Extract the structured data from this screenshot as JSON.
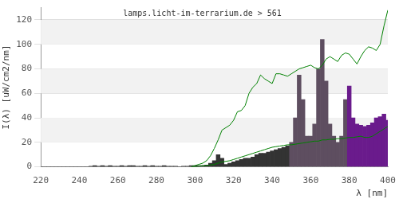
{
  "chart_data": {
    "type": "bar",
    "title": "lamps.licht-im-terrarium.de > 561",
    "x_label": "λ [nm]",
    "y_label": "I(λ) [uW/cm2/nm]",
    "x": [
      220,
      222,
      224,
      226,
      228,
      230,
      232,
      234,
      236,
      238,
      240,
      242,
      244,
      246,
      248,
      250,
      252,
      254,
      256,
      258,
      260,
      262,
      264,
      266,
      268,
      270,
      272,
      274,
      276,
      278,
      280,
      282,
      284,
      286,
      288,
      290,
      292,
      294,
      296,
      298,
      300,
      302,
      304,
      306,
      308,
      310,
      312,
      314,
      316,
      318,
      320,
      322,
      324,
      326,
      328,
      330,
      332,
      334,
      336,
      338,
      340,
      342,
      344,
      346,
      348,
      350,
      352,
      354,
      356,
      358,
      360,
      362,
      364,
      366,
      368,
      370,
      372,
      374,
      376,
      378,
      380,
      382,
      384,
      386,
      388,
      390,
      392,
      394,
      396,
      398,
      400
    ],
    "series": [
      {
        "type": "bar",
        "colors": [
          "#333333",
          "#333333",
          "#333333",
          "#333333",
          "#333333",
          "#333333",
          "#333333",
          "#333333",
          "#333333",
          "#333333",
          "#333333",
          "#333333",
          "#333333",
          "#333333",
          "#333333",
          "#333333",
          "#333333",
          "#333333",
          "#333333",
          "#333333",
          "#333333",
          "#333333",
          "#333333",
          "#333333",
          "#333333",
          "#333333",
          "#333333",
          "#333333",
          "#333333",
          "#333333",
          "#333333",
          "#333333",
          "#333333",
          "#333333",
          "#333333",
          "#333333",
          "#333333",
          "#333333",
          "#333333",
          "#333333",
          "#333333",
          "#333333",
          "#333333",
          "#333333",
          "#333333",
          "#333333",
          "#333333",
          "#333333",
          "#333333",
          "#333333",
          "#333333",
          "#333333",
          "#333333",
          "#333333",
          "#333333",
          "#333333",
          "#333333",
          "#333333",
          "#333333",
          "#333333",
          "#333333",
          "#333333",
          "#333333",
          "#333333",
          "#333333",
          "#5e4e60",
          "#5e4e60",
          "#5e4e60",
          "#5e4e60",
          "#5e4e60",
          "#5e4e60",
          "#5e4e60",
          "#5e4e60",
          "#5e4e60",
          "#5e4e60",
          "#5e4e60",
          "#5e4e60",
          "#5e4e60",
          "#5e4e60",
          "#5e4e60",
          "#6a1b8c",
          "#6a1b8c",
          "#6a1b8c",
          "#6a1b8c",
          "#6a1b8c",
          "#6a1b8c",
          "#6a1b8c",
          "#6a1b8c",
          "#6a1b8c",
          "#6a1b8c",
          "#6a1b8c"
        ],
        "values": [
          0,
          0,
          0,
          0,
          0,
          0,
          0,
          0,
          0,
          0,
          0,
          0,
          0,
          0.5,
          1,
          0.5,
          1,
          0.5,
          1,
          0.5,
          0.5,
          1,
          0.5,
          1,
          1,
          0.5,
          0.5,
          1,
          0.5,
          1,
          0.5,
          0.5,
          1,
          0.5,
          0.5,
          0.5,
          0,
          0.5,
          0.5,
          1,
          1,
          1,
          1,
          1.5,
          3,
          5,
          10,
          7,
          2,
          3,
          4,
          5,
          6,
          7,
          7,
          8,
          10,
          11,
          11,
          12,
          13,
          14,
          15,
          16,
          17,
          20,
          40,
          75,
          55,
          25,
          25,
          35,
          80,
          104,
          70,
          35,
          25,
          20,
          25,
          55,
          66,
          40,
          35,
          34,
          33,
          34,
          36,
          40,
          41,
          43,
          38
        ]
      },
      {
        "type": "line",
        "color": "#008000",
        "values": [
          null,
          null,
          null,
          null,
          null,
          null,
          null,
          null,
          null,
          null,
          null,
          null,
          null,
          null,
          null,
          null,
          null,
          null,
          null,
          null,
          null,
          null,
          null,
          null,
          null,
          null,
          null,
          null,
          null,
          null,
          null,
          null,
          null,
          null,
          null,
          null,
          null,
          null,
          null,
          0,
          1,
          2,
          3,
          5,
          9,
          15,
          22,
          30,
          32,
          34,
          38,
          45,
          46,
          50,
          60,
          65,
          68,
          75,
          72,
          70,
          68,
          76,
          76,
          75,
          74,
          76,
          78,
          80,
          81,
          82,
          83,
          81,
          80,
          83,
          88,
          90,
          88,
          86,
          91,
          93,
          92,
          88,
          84,
          90,
          95,
          98,
          97,
          95,
          100,
          115,
          128
        ]
      },
      {
        "type": "line",
        "color": "#008000",
        "values": [
          null,
          null,
          null,
          null,
          null,
          null,
          null,
          null,
          null,
          null,
          null,
          null,
          null,
          null,
          null,
          null,
          null,
          null,
          null,
          null,
          null,
          null,
          null,
          null,
          null,
          null,
          null,
          null,
          null,
          null,
          null,
          null,
          null,
          null,
          null,
          null,
          null,
          null,
          null,
          0,
          0,
          0.5,
          1,
          1,
          1.5,
          2,
          3,
          4,
          4.5,
          5,
          6,
          7,
          8,
          9,
          10,
          11,
          12,
          13,
          14,
          15,
          16,
          16.5,
          17,
          17.5,
          18,
          18,
          18.5,
          19,
          19.5,
          20,
          20.5,
          21,
          21,
          22,
          22,
          22.5,
          22.5,
          23,
          23,
          23.5,
          24,
          24,
          24.5,
          25,
          24,
          24,
          25,
          27,
          29,
          31,
          33
        ]
      }
    ],
    "xlim": [
      220,
      400
    ],
    "ylim": [
      0,
      130
    ],
    "xticks": [
      220,
      240,
      260,
      280,
      300,
      320,
      340,
      360,
      380,
      400
    ],
    "yticks": [
      0,
      20,
      40,
      60,
      80,
      100,
      120
    ],
    "grid": true
  }
}
